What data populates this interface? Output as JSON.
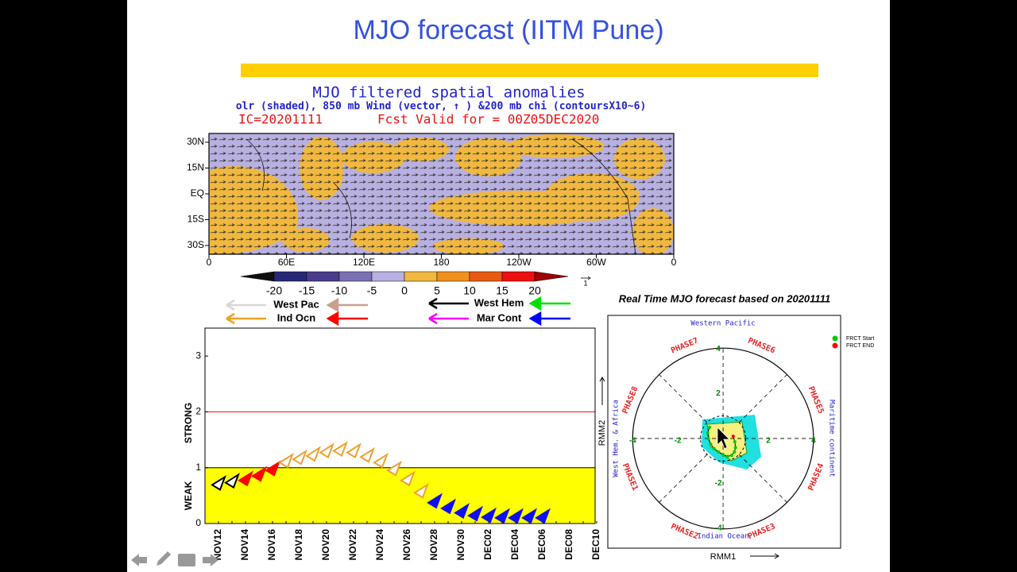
{
  "slide": {
    "title": "MJO forecast (IITM Pune)"
  },
  "map": {
    "title": "MJO filtered spatial anomalies",
    "subtitle": "olr (shaded), 850 mb Wind (vector, ↑ ) &200 mb chi (contoursX10~6)",
    "ic": "IC=20201111",
    "valid": "Fcst Valid for = 00Z05DEC2020",
    "lat_labels": [
      "30N",
      "15N",
      "EQ",
      "15S",
      "30S"
    ],
    "lon_labels": [
      "0",
      "60E",
      "120E",
      "180",
      "120W",
      "60W",
      "0"
    ],
    "colorbar": {
      "ticks": [
        -20,
        -15,
        -10,
        -5,
        0,
        5,
        10,
        15,
        20
      ],
      "colors": [
        "#101010",
        "#282878",
        "#4a3c8c",
        "#7a70b4",
        "#b8b0e0",
        "#f0b840",
        "#f0901c",
        "#e85a10",
        "#ee1010",
        "#a00000"
      ]
    },
    "vector_scale_label": "1"
  },
  "chart_data": [
    {
      "type": "scatter",
      "categories": [
        "NOV12",
        null,
        "NOV14",
        null,
        "NOV16",
        null,
        "NOV18",
        null,
        "NOV20",
        null,
        "NOV22",
        null,
        "NOV24",
        null,
        "NOV26",
        null,
        "NOV28",
        null,
        "NOV30",
        null,
        "DEC02",
        null,
        "DEC04",
        null,
        "DEC06",
        null,
        "DEC08",
        null,
        "DEC10"
      ],
      "series": [
        {
          "color": "#000000",
          "filled": false,
          "values": [
            0.72,
            0.76,
            null,
            null,
            null,
            null,
            null,
            null,
            null,
            null,
            null,
            null,
            null,
            null,
            null,
            null,
            null,
            null,
            null,
            null,
            null,
            null,
            null,
            null,
            null,
            null,
            null,
            null,
            null
          ]
        },
        {
          "color": "#ff0000",
          "filled": true,
          "values": [
            null,
            null,
            0.8,
            0.88,
            0.98,
            null,
            null,
            null,
            null,
            null,
            null,
            null,
            null,
            null,
            null,
            null,
            null,
            null,
            null,
            null,
            null,
            null,
            null,
            null,
            null,
            null,
            null,
            null,
            null
          ]
        },
        {
          "color": "#f0a030",
          "filled": false,
          "values": [
            null,
            null,
            null,
            null,
            null,
            1.12,
            1.18,
            1.24,
            1.3,
            1.33,
            1.3,
            1.22,
            1.12,
            0.98,
            0.8,
            0.58,
            null,
            null,
            null,
            null,
            null,
            null,
            null,
            null,
            null,
            null,
            null,
            null,
            null
          ]
        },
        {
          "color": "#1010ee",
          "filled": true,
          "values": [
            null,
            null,
            null,
            null,
            null,
            null,
            null,
            null,
            null,
            null,
            null,
            null,
            null,
            null,
            null,
            null,
            0.4,
            0.3,
            0.22,
            0.17,
            0.14,
            0.13,
            0.13,
            0.13,
            0.13,
            null,
            null,
            null,
            null
          ]
        }
      ],
      "legend": [
        {
          "name": "West Pac",
          "colors": [
            "#d8d8d8",
            "#c8a090"
          ]
        },
        {
          "name": "Ind Ocn",
          "colors": [
            "#f0a020",
            "#ff0000"
          ]
        },
        {
          "name": "West Hem",
          "colors": [
            "#000000",
            "#00e000"
          ]
        },
        {
          "name": "Mar Cont",
          "colors": [
            "#ff00ff",
            "#0000ff"
          ]
        }
      ],
      "ylim": [
        0,
        3.5
      ],
      "yticks": [
        0,
        1,
        2,
        3
      ],
      "band_labels": [
        "WEAK",
        "STRONG"
      ],
      "shaded_band": {
        "range": [
          0,
          1
        ],
        "color": "#ffff00"
      },
      "hlines": [
        {
          "value": 1,
          "color": "#000000"
        },
        {
          "value": 2,
          "color": "#ff0000"
        }
      ]
    },
    {
      "type": "phase",
      "title": "Real Time MJO forecast based on 20201111",
      "xlabel": "RMM1",
      "ylabel": "RMM2",
      "xlim": [
        -5.1,
        5.2
      ],
      "ylim": [
        -4.9,
        5.5
      ],
      "xticks": [
        -4,
        -2,
        2,
        4
      ],
      "yticks": [
        -4,
        -2,
        2,
        4
      ],
      "phase_labels": [
        "PHASE1",
        "PHASE2",
        "PHASE3",
        "PHASE4",
        "PHASE5",
        "PHASE6",
        "PHASE7",
        "PHASE8"
      ],
      "region_labels": {
        "top": "Western Pacific",
        "bottom": "Indian Ocean",
        "left": "West Hem. & Africa",
        "right": "Maritime continent"
      },
      "x": [
        -0.6,
        -0.68,
        -0.65,
        -0.55,
        -0.4,
        -0.2,
        0.0,
        0.2,
        0.38,
        0.5,
        0.55,
        0.52,
        0.45
      ],
      "y": [
        0.5,
        0.25,
        0.0,
        -0.25,
        -0.45,
        -0.6,
        -0.72,
        -0.8,
        -0.75,
        -0.6,
        -0.4,
        -0.15,
        0.1
      ],
      "legend": [
        {
          "name": "FRCT Start",
          "color": "#00cc00"
        },
        {
          "name": "FRCT END",
          "color": "#ff0000"
        }
      ]
    }
  ]
}
